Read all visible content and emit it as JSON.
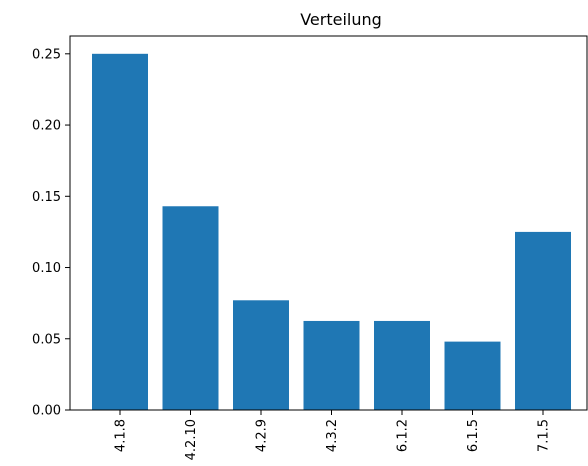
{
  "chart_data": {
    "type": "bar",
    "title": "Verteilung",
    "xlabel": "",
    "ylabel": "",
    "categories": [
      "4.1.8",
      "4.2.10",
      "4.2.9",
      "4.3.2",
      "6.1.2",
      "6.1.5",
      "7.1.5"
    ],
    "values": [
      0.25,
      0.143,
      0.077,
      0.0625,
      0.0625,
      0.048,
      0.125
    ],
    "ylim": [
      0,
      0.2625
    ],
    "yticks": [
      "0.00",
      "0.05",
      "0.10",
      "0.15",
      "0.20",
      "0.25"
    ],
    "ytick_values": [
      0,
      0.05,
      0.1,
      0.15,
      0.2,
      0.25
    ],
    "bar_color": "#1f77b4",
    "grid": false,
    "legend": "none"
  }
}
